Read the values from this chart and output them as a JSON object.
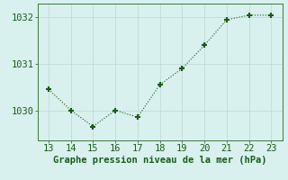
{
  "x": [
    13,
    14,
    15,
    16,
    17,
    18,
    19,
    20,
    21,
    22,
    23
  ],
  "y": [
    1030.45,
    1030.0,
    1029.65,
    1030.0,
    1029.85,
    1030.55,
    1030.9,
    1031.4,
    1031.95,
    1032.05,
    1032.05
  ],
  "line_color": "#1a5c1a",
  "marker": "+",
  "marker_size": 5,
  "marker_lw": 1.5,
  "background_color": "#d8f0ee",
  "grid_color": "#c0dcd8",
  "xlabel": "Graphe pression niveau de la mer (hPa)",
  "xlabel_color": "#1a5c1a",
  "tick_color": "#1a5c1a",
  "spine_color": "#3a7a3a",
  "xlim": [
    12.5,
    23.5
  ],
  "ylim": [
    1029.35,
    1032.3
  ],
  "yticks": [
    1030,
    1031,
    1032
  ],
  "xticks": [
    13,
    14,
    15,
    16,
    17,
    18,
    19,
    20,
    21,
    22,
    23
  ],
  "xlabel_fontsize": 7.5,
  "tick_fontsize": 7.5
}
